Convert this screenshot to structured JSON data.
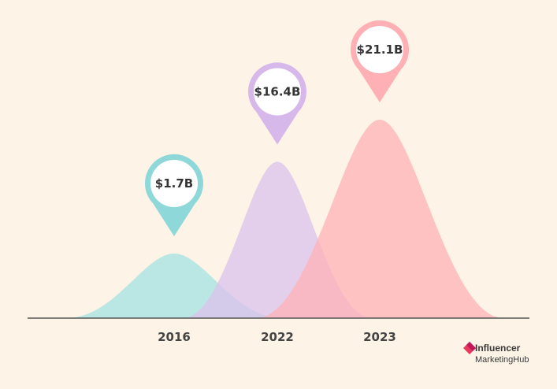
{
  "chart_data": {
    "type": "area",
    "categories": [
      "2016",
      "2022",
      "2023"
    ],
    "values": [
      1.7,
      16.4,
      21.1
    ],
    "value_labels": [
      "$1.7B",
      "$16.4B",
      "$21.1B"
    ],
    "unit": "billion USD",
    "colors": [
      "#a6e3e2",
      "#dbc3ec",
      "#ffb4b8"
    ],
    "marker_colors": [
      "#8ed8d9",
      "#d6b9ea",
      "#ffb0b5"
    ],
    "grid": false,
    "title": "",
    "xlabel": "",
    "ylabel": ""
  },
  "logo": {
    "line1": "Influencer",
    "line2": "MarketingHub",
    "colors": [
      "#e8395c",
      "#c2185b"
    ]
  },
  "colors": {
    "background": "#fdf3e6",
    "axis": "#555555"
  }
}
